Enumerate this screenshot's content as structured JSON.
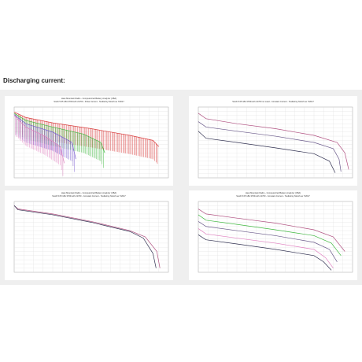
{
  "section_title": "Discharging current:",
  "chart_data": [
    {
      "type": "line",
      "title": "Heat Mountain Radio - Computerized Battery Analyzer (CBA)",
      "subtitle": "Soshi 5.05 18A 3700mAh 21700 - Pulse Current - TestbehLy Moorh.se 7/2017",
      "ylim": [
        2.6,
        4.3
      ],
      "xlim": [
        0,
        4.0
      ],
      "grid": true,
      "series": [
        {
          "color": "#d94040",
          "x": [
            0,
            0.3,
            1,
            2,
            3,
            3.6,
            3.75
          ],
          "y": [
            4.18,
            4.05,
            3.92,
            3.78,
            3.62,
            3.5,
            3.35
          ],
          "pulse": true
        },
        {
          "color": "#40b840",
          "x": [
            0,
            0.3,
            1,
            1.8,
            2.25,
            2.35
          ],
          "y": [
            4.15,
            3.98,
            3.82,
            3.65,
            3.45,
            3.2
          ],
          "pulse": true
        },
        {
          "color": "#7a5bd0",
          "x": [
            0,
            0.3,
            1,
            1.5,
            1.6
          ],
          "y": [
            4.12,
            3.9,
            3.7,
            3.45,
            3.05
          ],
          "pulse": true
        },
        {
          "color": "#e080c0",
          "x": [
            0,
            0.3,
            0.8,
            1.2,
            1.3
          ],
          "y": [
            4.1,
            3.82,
            3.6,
            3.35,
            2.95
          ],
          "pulse": true
        }
      ]
    },
    {
      "type": "line",
      "title": "",
      "subtitle": "Soshi 5.05 18A 3700mAh 21700 no Load - Constant Current - TestbehLy Moorh.se 7/2017",
      "ylim": [
        2.6,
        4.3
      ],
      "xlim": [
        0,
        4.0
      ],
      "grid": true,
      "series": [
        {
          "color": "#b05080",
          "x": [
            0,
            0.2,
            1,
            2,
            3,
            3.6,
            3.8,
            3.9
          ],
          "y": [
            4.15,
            4.02,
            3.9,
            3.78,
            3.62,
            3.45,
            3.2,
            2.8
          ]
        },
        {
          "color": "#6a5a8a",
          "x": [
            0,
            0.2,
            1,
            2,
            3,
            3.5,
            3.65,
            3.7
          ],
          "y": [
            3.95,
            3.82,
            3.72,
            3.6,
            3.45,
            3.3,
            3.05,
            2.75
          ]
        },
        {
          "color": "#303050",
          "x": [
            0,
            0.2,
            1,
            2,
            3,
            3.4,
            3.55
          ],
          "y": [
            3.72,
            3.55,
            3.45,
            3.32,
            3.18,
            3.0,
            2.72
          ]
        }
      ]
    },
    {
      "type": "line",
      "title": "Heat Mountain Radio - Computerized Battery Analyzer (CBA)",
      "subtitle": "Soshi 5.05 18A 3700mAh 21700 - Constant Current - TestbehLy Moorh.se 7/2017",
      "ylim": [
        2.6,
        4.3
      ],
      "xlim": [
        0,
        4.0
      ],
      "grid": true,
      "series": [
        {
          "color": "#b05080",
          "x": [
            0,
            0.1,
            1,
            2,
            3,
            3.4,
            3.7,
            3.78
          ],
          "y": [
            4.2,
            4.12,
            4.0,
            3.82,
            3.6,
            3.45,
            3.1,
            2.7
          ]
        },
        {
          "color": "#303050",
          "x": [
            0,
            0.1,
            1,
            2,
            3,
            3.35,
            3.6,
            3.68
          ],
          "y": [
            4.2,
            4.1,
            3.98,
            3.8,
            3.58,
            3.42,
            3.05,
            2.7
          ]
        }
      ]
    },
    {
      "type": "line",
      "title": "Heat Mountain Radio - Computerized Battery Analyzer (CBA)",
      "subtitle": "Soshi 5.05 18A 3700mAh 21700 - Constant Current - TestbehLy Moorh.se 7/2017",
      "ylim": [
        2.6,
        4.3
      ],
      "xlim": [
        0,
        4.0
      ],
      "grid": true,
      "series": [
        {
          "color": "#b05080",
          "x": [
            0,
            0.2,
            1,
            2,
            3,
            3.5,
            3.8
          ],
          "y": [
            4.12,
            4.0,
            3.9,
            3.78,
            3.62,
            3.45,
            3.1
          ]
        },
        {
          "color": "#40b840",
          "x": [
            0,
            0.2,
            1,
            2,
            3,
            3.45,
            3.7
          ],
          "y": [
            3.98,
            3.85,
            3.75,
            3.62,
            3.48,
            3.3,
            3.0
          ]
        },
        {
          "color": "#6a5a8a",
          "x": [
            0,
            0.2,
            1,
            2,
            3,
            3.4,
            3.6
          ],
          "y": [
            3.82,
            3.7,
            3.6,
            3.48,
            3.32,
            3.15,
            2.85
          ]
        },
        {
          "color": "#e080c0",
          "x": [
            0,
            0.2,
            1,
            2,
            3,
            3.3,
            3.5
          ],
          "y": [
            3.65,
            3.52,
            3.42,
            3.3,
            3.15,
            2.95,
            2.7
          ]
        },
        {
          "color": "#303050",
          "x": [
            0,
            0.2,
            1,
            2,
            3,
            3.25,
            3.45
          ],
          "y": [
            3.5,
            3.38,
            3.28,
            3.15,
            3.0,
            2.85,
            2.65
          ]
        }
      ]
    }
  ]
}
